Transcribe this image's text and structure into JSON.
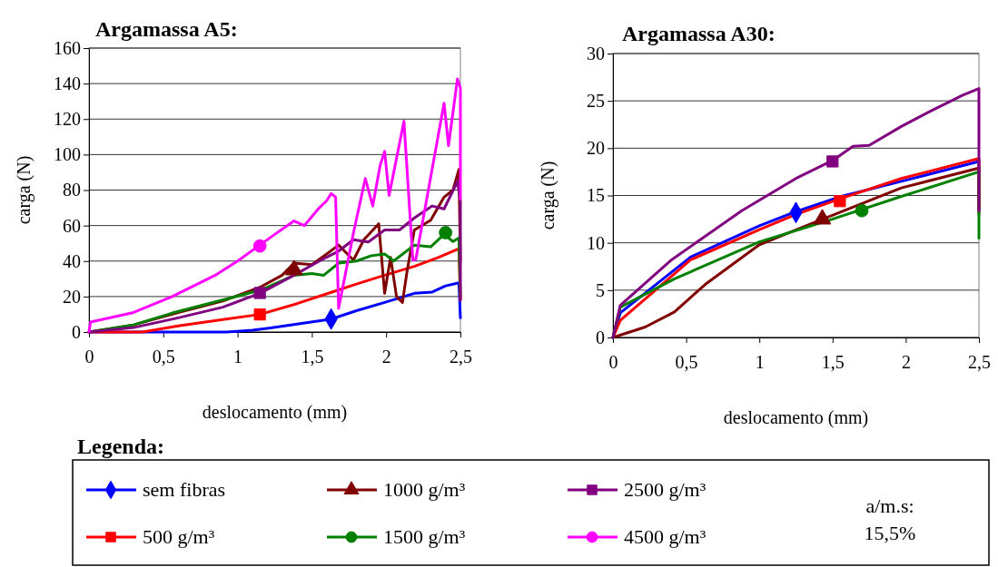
{
  "chart_data": [
    {
      "type": "line",
      "title": "Argamassa A5:",
      "xlabel": "deslocamento (mm)",
      "ylabel": "carga (N)",
      "legend_title": "Legenda:",
      "legend": "bottom",
      "grid": "y",
      "annotations": [
        "a/m.s:\n15,5%"
      ],
      "xlim": [
        0,
        2.5
      ],
      "ylim": [
        0,
        160
      ],
      "xticks": [
        0,
        {
          "value": 0.5,
          "label": "0,5"
        },
        1,
        {
          "value": 1.5,
          "label": "1,5"
        },
        2,
        {
          "value": 2.5,
          "label": "2,5"
        }
      ],
      "yticks": [
        0,
        20,
        40,
        60,
        80,
        100,
        120,
        140,
        160
      ],
      "series": [
        {
          "name": "sem fibras",
          "color": "#0000ff",
          "x": [
            0,
            0.5,
            0.93,
            1.1,
            1.21,
            1.4,
            1.63,
            1.8,
            1.99,
            2.19,
            2.31,
            2.4,
            2.49,
            2.5
          ],
          "values": [
            0,
            0,
            0,
            1,
            2.2,
            4.5,
            7.3,
            12,
            16.7,
            21.8,
            22.5,
            26,
            27.7,
            8
          ]
        },
        {
          "name": "500 g/m³",
          "color": "#ff0000",
          "x": [
            0,
            0.36,
            0.6,
            0.9,
            1.15,
            1.4,
            1.64,
            1.8,
            1.99,
            2.19,
            2.35,
            2.49,
            2.5
          ],
          "values": [
            0,
            0,
            3.5,
            7,
            9.9,
            16,
            22.6,
            27,
            32,
            37,
            42,
            47,
            18
          ]
        },
        {
          "name": "1000 g/m³",
          "color": "#800000",
          "x": [
            0,
            0.3,
            0.6,
            0.9,
            1.15,
            1.3,
            1.38,
            1.5,
            1.6,
            1.68,
            1.78,
            1.85,
            1.95,
            1.99,
            2.03,
            2.07,
            2.11,
            2.14,
            2.19,
            2.3,
            2.39,
            2.45,
            2.49,
            2.5
          ],
          "values": [
            0,
            4,
            11,
            17.5,
            25.2,
            32,
            38.8,
            38,
            44,
            49,
            40.5,
            52,
            61,
            21.8,
            42,
            20,
            16.7,
            33.7,
            57.5,
            63,
            76,
            80,
            91.6,
            40
          ]
        },
        {
          "name": "1500 g/m³",
          "color": "#008000",
          "x": [
            0,
            0.3,
            0.56,
            0.85,
            1.15,
            1.3,
            1.38,
            1.5,
            1.58,
            1.68,
            1.8,
            1.9,
            1.99,
            2.05,
            2.19,
            2.3,
            2.39,
            2.45,
            2.49,
            2.5
          ],
          "values": [
            0,
            4,
            10.7,
            17,
            23.5,
            29,
            32,
            33,
            32,
            38.8,
            40,
            43,
            44,
            40,
            49,
            48,
            55,
            51,
            53,
            20
          ]
        },
        {
          "name": "2500 g/m³",
          "color": "#800080",
          "x": [
            0,
            0.3,
            0.6,
            0.9,
            1.15,
            1.38,
            1.55,
            1.68,
            1.78,
            1.88,
            1.99,
            2.09,
            2.19,
            2.31,
            2.39,
            2.48,
            2.5,
            2.5
          ],
          "values": [
            0,
            2.5,
            8,
            14,
            21.8,
            32,
            40,
            45.6,
            52,
            50.7,
            57.5,
            57.5,
            64.3,
            71,
            69.4,
            84.8,
            74,
            18
          ]
        },
        {
          "name": "4500 g/m³",
          "color": "#ff00ff",
          "x": [
            0,
            0.01,
            0.3,
            0.56,
            0.85,
            1.0,
            1.15,
            1.25,
            1.38,
            1.45,
            1.55,
            1.6,
            1.63,
            1.66,
            1.68,
            1.78,
            1.86,
            1.91,
            1.96,
            1.99,
            2.02,
            2.12,
            2.18,
            2.2,
            2.39,
            2.42,
            2.48,
            2.5,
            2.5
          ],
          "values": [
            0,
            5.6,
            11,
            20,
            32,
            40,
            49,
            55,
            62.6,
            60,
            70,
            74,
            78,
            76,
            13.3,
            55.8,
            86.5,
            71,
            94,
            101.8,
            77,
            118.8,
            40.5,
            41,
            129,
            105,
            142.6,
            137.5,
            75
          ]
        },
        {
          "type": "scatter",
          "color": "#0000ff",
          "marker": "diamond",
          "x": [
            1.63
          ],
          "values": [
            7.3
          ]
        },
        {
          "type": "scatter",
          "color": "#ff0000",
          "marker": "square",
          "x": [
            1.15
          ],
          "values": [
            9.9
          ]
        },
        {
          "type": "scatter",
          "color": "#800000",
          "marker": "triangle",
          "x": [
            1.38
          ],
          "values": [
            35
          ]
        },
        {
          "type": "scatter",
          "color": "#008000",
          "marker": "circle",
          "x": [
            2.4
          ],
          "values": [
            56
          ]
        },
        {
          "type": "scatter",
          "color": "#800080",
          "marker": "square",
          "x": [
            1.15
          ],
          "values": [
            22
          ]
        },
        {
          "type": "scatter",
          "color": "#ff00ff",
          "marker": "circle",
          "x": [
            1.15
          ],
          "values": [
            48.5
          ]
        }
      ]
    },
    {
      "type": "line",
      "title": "Argamassa A30:",
      "xlabel": "deslocamento (mm)",
      "ylabel": "carga (N)",
      "grid": "y",
      "xlim": [
        0,
        2.5
      ],
      "ylim": [
        0,
        30
      ],
      "xticks": [
        0,
        {
          "value": 0.5,
          "label": "0,5"
        },
        1,
        {
          "value": 1.5,
          "label": "1,5"
        },
        2,
        {
          "value": 2.5,
          "label": "2,5"
        }
      ],
      "yticks": [
        0,
        5,
        10,
        15,
        20,
        25,
        30
      ],
      "series": [
        {
          "color": "#0000ff",
          "x": [
            0,
            0.05,
            0.53,
            1.0,
            1.25,
            1.56,
            1.97,
            2.5,
            2.5
          ],
          "values": [
            0,
            2.6,
            8.5,
            11.8,
            13.3,
            14.9,
            16.5,
            18.6,
            13.6
          ]
        },
        {
          "color": "#ff0000",
          "x": [
            0,
            0.05,
            0.38,
            0.53,
            1.0,
            1.25,
            1.56,
            1.97,
            2.5,
            2.5
          ],
          "values": [
            0,
            1.8,
            6.2,
            8.2,
            11.4,
            13,
            14.7,
            16.8,
            18.9,
            13.5
          ]
        },
        {
          "color": "#800000",
          "x": [
            0,
            0.22,
            0.42,
            0.63,
            1.0,
            1.35,
            1.97,
            2.5,
            2.5
          ],
          "values": [
            0,
            1.1,
            2.7,
            5.6,
            9.8,
            12,
            15.8,
            17.9,
            13
          ]
        },
        {
          "color": "#008000",
          "x": [
            0,
            0.05,
            0.42,
            1.0,
            1.46,
            1.97,
            2.5,
            2.5
          ],
          "values": [
            0,
            3.2,
            6.2,
            10.1,
            12.3,
            14.9,
            17.5,
            10.5
          ]
        },
        {
          "color": "#800080",
          "x": [
            0,
            0.05,
            0.4,
            0.88,
            1.25,
            1.5,
            1.64,
            1.75,
            1.97,
            2.18,
            2.39,
            2.5,
            2.5
          ],
          "values": [
            0,
            3.4,
            8.2,
            13.4,
            16.8,
            18.7,
            20.2,
            20.3,
            22.3,
            24,
            25.6,
            26.3,
            13.4
          ]
        },
        {
          "type": "scatter",
          "color": "#0000ff",
          "marker": "diamond",
          "x": [
            1.25
          ],
          "values": [
            13.2
          ]
        },
        {
          "type": "scatter",
          "color": "#ff0000",
          "marker": "square",
          "x": [
            1.55
          ],
          "values": [
            14.4
          ]
        },
        {
          "type": "scatter",
          "color": "#800000",
          "marker": "triangle",
          "x": [
            1.43
          ],
          "values": [
            12.5
          ]
        },
        {
          "type": "scatter",
          "color": "#008000",
          "marker": "circle",
          "x": [
            1.7
          ],
          "values": [
            13.4
          ]
        },
        {
          "type": "scatter",
          "color": "#800080",
          "marker": "square",
          "x": [
            1.5
          ],
          "values": [
            18.6
          ]
        }
      ]
    }
  ]
}
